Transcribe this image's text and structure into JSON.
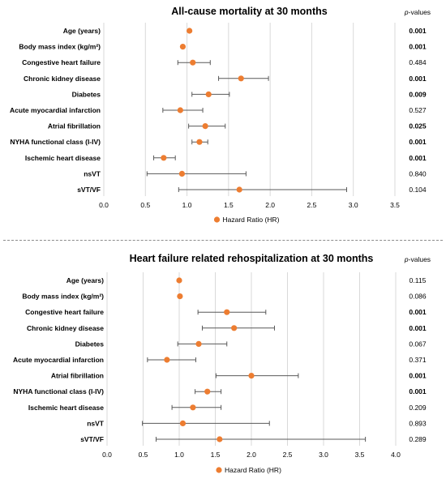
{
  "chart_data": [
    {
      "type": "forest",
      "title": "All-cause mortality at 30 months",
      "pvalue_header_italic": "p",
      "pvalue_header_rest": "-values",
      "legend_label": "Hazard Ratio (HR)",
      "xlim": [
        0.0,
        3.5
      ],
      "xticks": [
        "0.0",
        "0.5",
        "1.0",
        "1.5",
        "2.0",
        "2.5",
        "3.0",
        "3.5"
      ],
      "marker_color": "#ED7D31",
      "rows": [
        {
          "label": "Age (years)",
          "hr": 1.03,
          "lo": 1.02,
          "hi": 1.04,
          "p": "0.001",
          "sig": true
        },
        {
          "label": "Body mass index (kg/m²)",
          "hr": 0.95,
          "lo": 0.94,
          "hi": 0.96,
          "p": "0.001",
          "sig": true
        },
        {
          "label": "Congestive heart failure",
          "hr": 1.07,
          "lo": 0.89,
          "hi": 1.28,
          "p": "0.484",
          "sig": false
        },
        {
          "label": "Chronic kidney disease",
          "hr": 1.65,
          "lo": 1.38,
          "hi": 1.98,
          "p": "0.001",
          "sig": true
        },
        {
          "label": "Diabetes",
          "hr": 1.26,
          "lo": 1.06,
          "hi": 1.51,
          "p": "0.009",
          "sig": true
        },
        {
          "label": "Acute myocardial infarction",
          "hr": 0.92,
          "lo": 0.71,
          "hi": 1.19,
          "p": "0.527",
          "sig": false
        },
        {
          "label": "Atrial fibrillation",
          "hr": 1.22,
          "lo": 1.02,
          "hi": 1.46,
          "p": "0.025",
          "sig": true
        },
        {
          "label": "NYHA functional class (I-IV)",
          "hr": 1.15,
          "lo": 1.06,
          "hi": 1.25,
          "p": "0.001",
          "sig": true
        },
        {
          "label": "Ischemic heart disease",
          "hr": 0.72,
          "lo": 0.6,
          "hi": 0.86,
          "p": "0.001",
          "sig": true
        },
        {
          "label": "nsVT",
          "hr": 0.94,
          "lo": 0.52,
          "hi": 1.71,
          "p": "0.840",
          "sig": false
        },
        {
          "label": "sVT/VF",
          "hr": 1.63,
          "lo": 0.9,
          "hi": 2.92,
          "p": "0.104",
          "sig": false
        }
      ]
    },
    {
      "type": "forest",
      "title": "Heart failure related rehospitalization at 30 months",
      "pvalue_header_italic": "p",
      "pvalue_header_rest": "-values",
      "legend_label": "Hazard Ratio (HR)",
      "xlim": [
        0.0,
        4.0
      ],
      "xticks": [
        "0.0",
        "0.5",
        "1.0",
        "1.5",
        "2.0",
        "2.5",
        "3.0",
        "3.5",
        "4.0"
      ],
      "marker_color": "#ED7D31",
      "rows": [
        {
          "label": "Age (years)",
          "hr": 1.0,
          "lo": 0.99,
          "hi": 1.01,
          "p": "0.115",
          "sig": false
        },
        {
          "label": "Body mass index (kg/m²)",
          "hr": 1.01,
          "lo": 1.0,
          "hi": 1.02,
          "p": "0.086",
          "sig": false
        },
        {
          "label": "Congestive heart failure",
          "hr": 1.66,
          "lo": 1.26,
          "hi": 2.2,
          "p": "0.001",
          "sig": true
        },
        {
          "label": "Chronic kidney disease",
          "hr": 1.76,
          "lo": 1.32,
          "hi": 2.32,
          "p": "0.001",
          "sig": true
        },
        {
          "label": "Diabetes",
          "hr": 1.27,
          "lo": 0.98,
          "hi": 1.66,
          "p": "0.067",
          "sig": false
        },
        {
          "label": "Acute myocardial infarction",
          "hr": 0.83,
          "lo": 0.56,
          "hi": 1.23,
          "p": "0.371",
          "sig": false
        },
        {
          "label": "Atrial fibrillation",
          "hr": 2.0,
          "lo": 1.51,
          "hi": 2.65,
          "p": "0.001",
          "sig": true
        },
        {
          "label": "NYHA functional class (I-IV)",
          "hr": 1.39,
          "lo": 1.22,
          "hi": 1.58,
          "p": "0.001",
          "sig": true
        },
        {
          "label": "Ischemic heart disease",
          "hr": 1.19,
          "lo": 0.9,
          "hi": 1.58,
          "p": "0.209",
          "sig": false
        },
        {
          "label": "nsVT",
          "hr": 1.05,
          "lo": 0.49,
          "hi": 2.25,
          "p": "0.893",
          "sig": false
        },
        {
          "label": "sVT/VF",
          "hr": 1.56,
          "lo": 0.68,
          "hi": 3.58,
          "p": "0.289",
          "sig": false
        }
      ]
    }
  ]
}
